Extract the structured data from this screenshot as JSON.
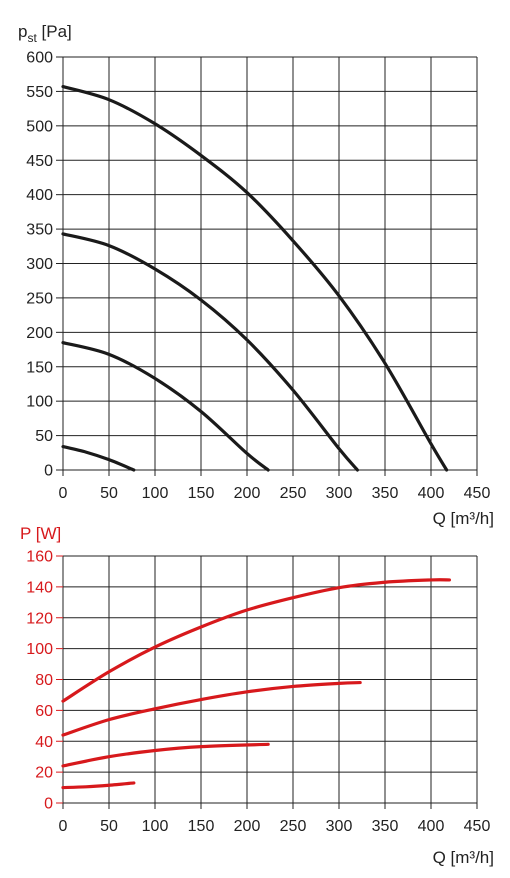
{
  "chart_data": [
    {
      "type": "line",
      "ylabel_main": "p",
      "ylabel_sub": "st",
      "ylabel_unit": " [Pa]",
      "xlabel": "Q [m³/h]",
      "xlim": [
        0,
        450
      ],
      "ylim": [
        0,
        600
      ],
      "x_ticks": [
        "0",
        "50",
        "100",
        "150",
        "200",
        "250",
        "300",
        "350",
        "400",
        "450"
      ],
      "y_ticks": [
        "0",
        "50",
        "100",
        "150",
        "200",
        "250",
        "300",
        "350",
        "400",
        "450",
        "500",
        "550",
        "600"
      ],
      "grid": true,
      "color": "#1a1a1a",
      "series": [
        {
          "x": [
            0,
            25,
            50,
            77
          ],
          "y": [
            34,
            26,
            15,
            0
          ]
        },
        {
          "x": [
            0,
            50,
            100,
            150,
            200,
            223
          ],
          "y": [
            185,
            168,
            133,
            85,
            24,
            0
          ]
        },
        {
          "x": [
            0,
            50,
            100,
            150,
            200,
            250,
            300,
            320
          ],
          "y": [
            343,
            326,
            292,
            247,
            189,
            116,
            31,
            0
          ]
        },
        {
          "x": [
            0,
            50,
            100,
            150,
            200,
            250,
            300,
            350,
            400,
            417
          ],
          "y": [
            557,
            538,
            503,
            457,
            403,
            333,
            253,
            155,
            38,
            0
          ]
        }
      ]
    },
    {
      "type": "line",
      "ylabel": "P [W]",
      "xlabel": "Q [m³/h]",
      "xlim": [
        0,
        450
      ],
      "ylim": [
        0,
        160
      ],
      "x_ticks": [
        "0",
        "50",
        "100",
        "150",
        "200",
        "250",
        "300",
        "350",
        "400",
        "450"
      ],
      "y_ticks": [
        "0",
        "20",
        "40",
        "60",
        "80",
        "100",
        "120",
        "140",
        "160"
      ],
      "grid": true,
      "color": "#d7191c",
      "series": [
        {
          "x": [
            0,
            25,
            50,
            77
          ],
          "y": [
            10,
            10.5,
            11.5,
            13
          ]
        },
        {
          "x": [
            0,
            50,
            100,
            150,
            223
          ],
          "y": [
            24,
            30,
            34,
            36.5,
            38
          ]
        },
        {
          "x": [
            0,
            50,
            100,
            150,
            200,
            250,
            300,
            323
          ],
          "y": [
            44,
            54,
            61,
            67,
            72,
            75.5,
            77.5,
            78
          ]
        },
        {
          "x": [
            0,
            50,
            100,
            150,
            200,
            250,
            300,
            350,
            400,
            420
          ],
          "y": [
            66,
            85,
            101,
            114,
            125,
            133,
            139.5,
            143,
            144.5,
            144.5
          ]
        }
      ]
    }
  ]
}
